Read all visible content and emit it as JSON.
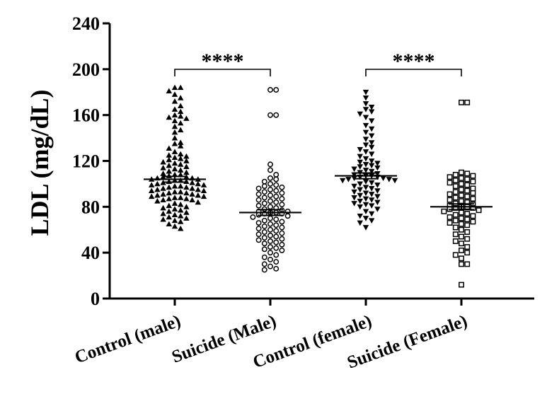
{
  "chart_data": {
    "type": "scatter",
    "subtype": "dot-plot-with-mean-sem",
    "ylabel": "LDL (mg/dL)",
    "ylim": [
      0,
      240
    ],
    "yticks": [
      "0",
      "40",
      "80",
      "120",
      "160",
      "200",
      "240"
    ],
    "categories": [
      "Control (male)",
      "Suicide (Male)",
      "Control (female)",
      "Suicide (Female)"
    ],
    "marker_styles": [
      "triangle-up-filled",
      "circle-open",
      "triangle-down-filled",
      "square-open"
    ],
    "means": [
      104,
      75,
      107,
      80
    ],
    "sem": [
      2.5,
      2.5,
      2.5,
      2.5
    ],
    "series": [
      {
        "name": "Control (male)",
        "values": [
          184,
          184,
          181,
          178,
          175,
          172,
          168,
          165,
          163,
          160,
          159,
          158,
          157,
          155,
          153,
          150,
          147,
          145,
          140,
          136,
          135,
          133,
          131,
          128,
          126,
          125,
          124,
          123,
          122,
          121,
          120,
          119,
          118,
          117,
          116,
          115,
          114,
          113,
          112,
          111,
          110,
          109,
          108,
          108,
          107,
          106,
          106,
          105,
          105,
          104,
          104,
          103,
          103,
          102,
          102,
          101,
          101,
          100,
          100,
          99,
          99,
          98,
          98,
          97,
          97,
          96,
          96,
          95,
          95,
          94,
          94,
          93,
          93,
          92,
          92,
          91,
          91,
          90,
          90,
          89,
          89,
          88,
          88,
          87,
          87,
          86,
          86,
          85,
          84,
          83,
          82,
          81,
          80,
          79,
          78,
          77,
          76,
          75,
          74,
          73,
          72,
          71,
          70,
          69,
          68,
          67,
          65,
          63,
          61
        ]
      },
      {
        "name": "Suicide (Male)",
        "values": [
          182,
          182,
          160,
          160,
          117,
          112,
          108,
          105,
          104,
          102,
          100,
          99,
          98,
          97,
          96,
          95,
          94,
          93,
          92,
          91,
          90,
          89,
          88,
          87,
          86,
          85,
          84,
          83,
          82,
          81,
          80,
          79,
          78,
          77,
          76,
          76,
          75,
          75,
          74,
          74,
          73,
          72,
          71,
          70,
          69,
          68,
          67,
          66,
          65,
          64,
          63,
          62,
          61,
          60,
          59,
          58,
          57,
          56,
          55,
          54,
          53,
          52,
          51,
          50,
          49,
          48,
          47,
          45,
          44,
          43,
          42,
          40,
          38,
          36,
          34,
          32,
          30,
          28,
          26,
          25
        ]
      },
      {
        "name": "Control (female)",
        "values": [
          180,
          175,
          170,
          167,
          165,
          163,
          161,
          158,
          155,
          151,
          148,
          145,
          142,
          139,
          136,
          134,
          132,
          130,
          128,
          126,
          124,
          122,
          120,
          119,
          118,
          117,
          116,
          115,
          114,
          113,
          112,
          111,
          110,
          109,
          108,
          107,
          107,
          106,
          106,
          105,
          105,
          104,
          104,
          103,
          103,
          102,
          101,
          100,
          99,
          98,
          97,
          96,
          95,
          94,
          93,
          92,
          91,
          90,
          89,
          88,
          87,
          86,
          85,
          84,
          83,
          82,
          81,
          80,
          78,
          76,
          74,
          72,
          70,
          68,
          66,
          62
        ]
      },
      {
        "name": "Suicide (Female)",
        "values": [
          171,
          171,
          110,
          109,
          108,
          107,
          106,
          105,
          104,
          103,
          102,
          101,
          100,
          99,
          98,
          96,
          95,
          94,
          93,
          92,
          91,
          90,
          89,
          88,
          87,
          86,
          85,
          84,
          83,
          82,
          81,
          80,
          80,
          79,
          79,
          78,
          77,
          76,
          75,
          74,
          73,
          72,
          71,
          70,
          69,
          68,
          67,
          66,
          65,
          64,
          62,
          60,
          58,
          56,
          54,
          52,
          50,
          48,
          45,
          42,
          40,
          38,
          35,
          30,
          30,
          12
        ]
      }
    ],
    "annotations": [
      {
        "from": "Control (male)",
        "to": "Suicide (Male)",
        "label": "****"
      },
      {
        "from": "Control (female)",
        "to": "Suicide (Female)",
        "label": "****"
      }
    ]
  }
}
